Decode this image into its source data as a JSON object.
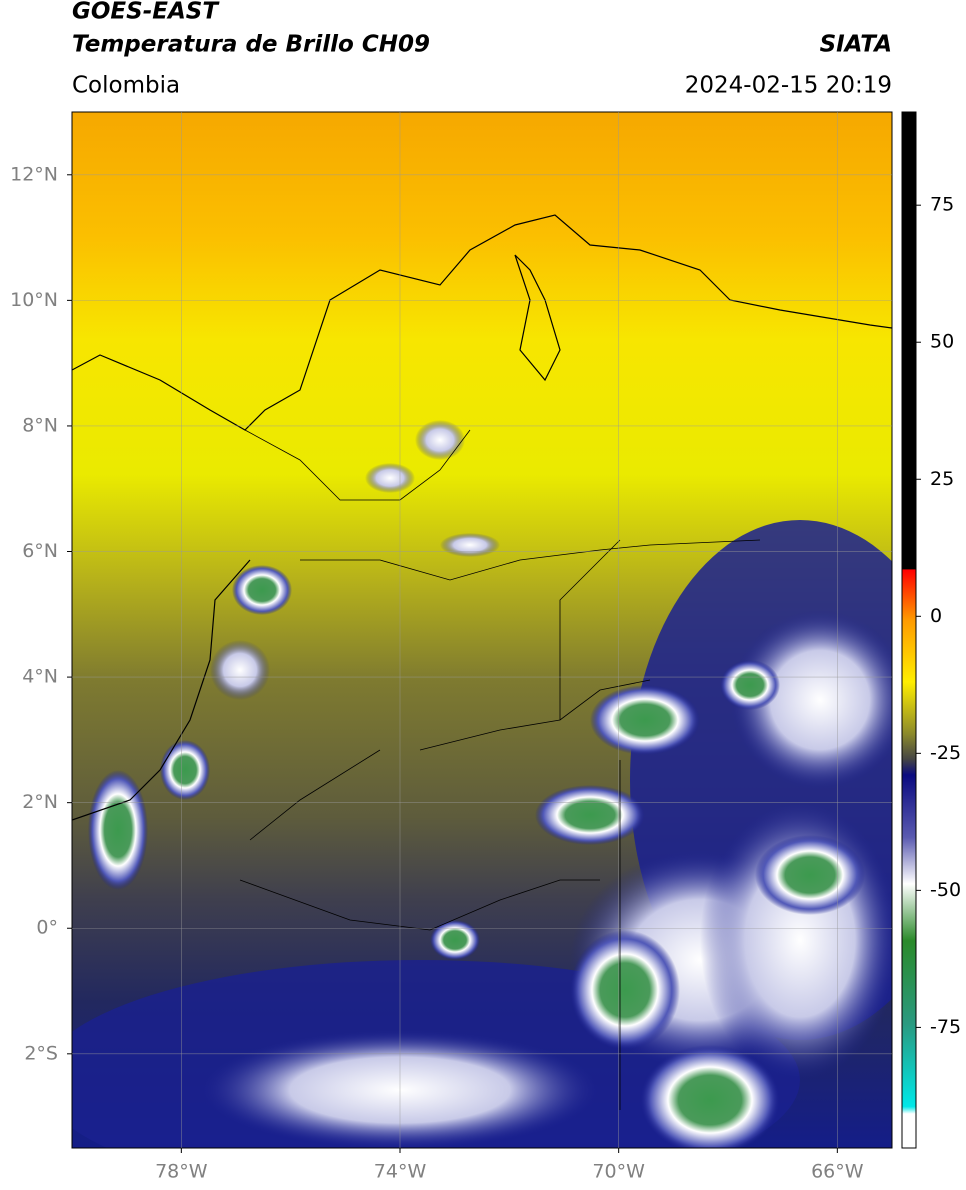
{
  "header": {
    "satellite": "GOES-EAST",
    "product": "Temperatura de Brillo CH09",
    "region": "Colombia",
    "source": "SIATA",
    "datetime": "2024-02-15 20:19"
  },
  "map": {
    "xlim": [
      -80,
      -65
    ],
    "ylim": [
      -3.5,
      13
    ],
    "xticks": [
      {
        "value": -78,
        "label": "78°W"
      },
      {
        "value": -74,
        "label": "74°W"
      },
      {
        "value": -70,
        "label": "70°W"
      },
      {
        "value": -66,
        "label": "66°W"
      }
    ],
    "yticks": [
      {
        "value": 12,
        "label": "12°N"
      },
      {
        "value": 10,
        "label": "10°N"
      },
      {
        "value": 8,
        "label": "8°N"
      },
      {
        "value": 6,
        "label": "6°N"
      },
      {
        "value": 4,
        "label": "4°N"
      },
      {
        "value": 2,
        "label": "2°N"
      },
      {
        "value": 0,
        "label": "0°"
      },
      {
        "value": -2,
        "label": "2°S"
      }
    ],
    "grid": true
  },
  "colorbar": {
    "clim": [
      -97,
      92
    ],
    "ticks": [
      75,
      50,
      25,
      0,
      -25,
      -50,
      -75
    ]
  }
}
